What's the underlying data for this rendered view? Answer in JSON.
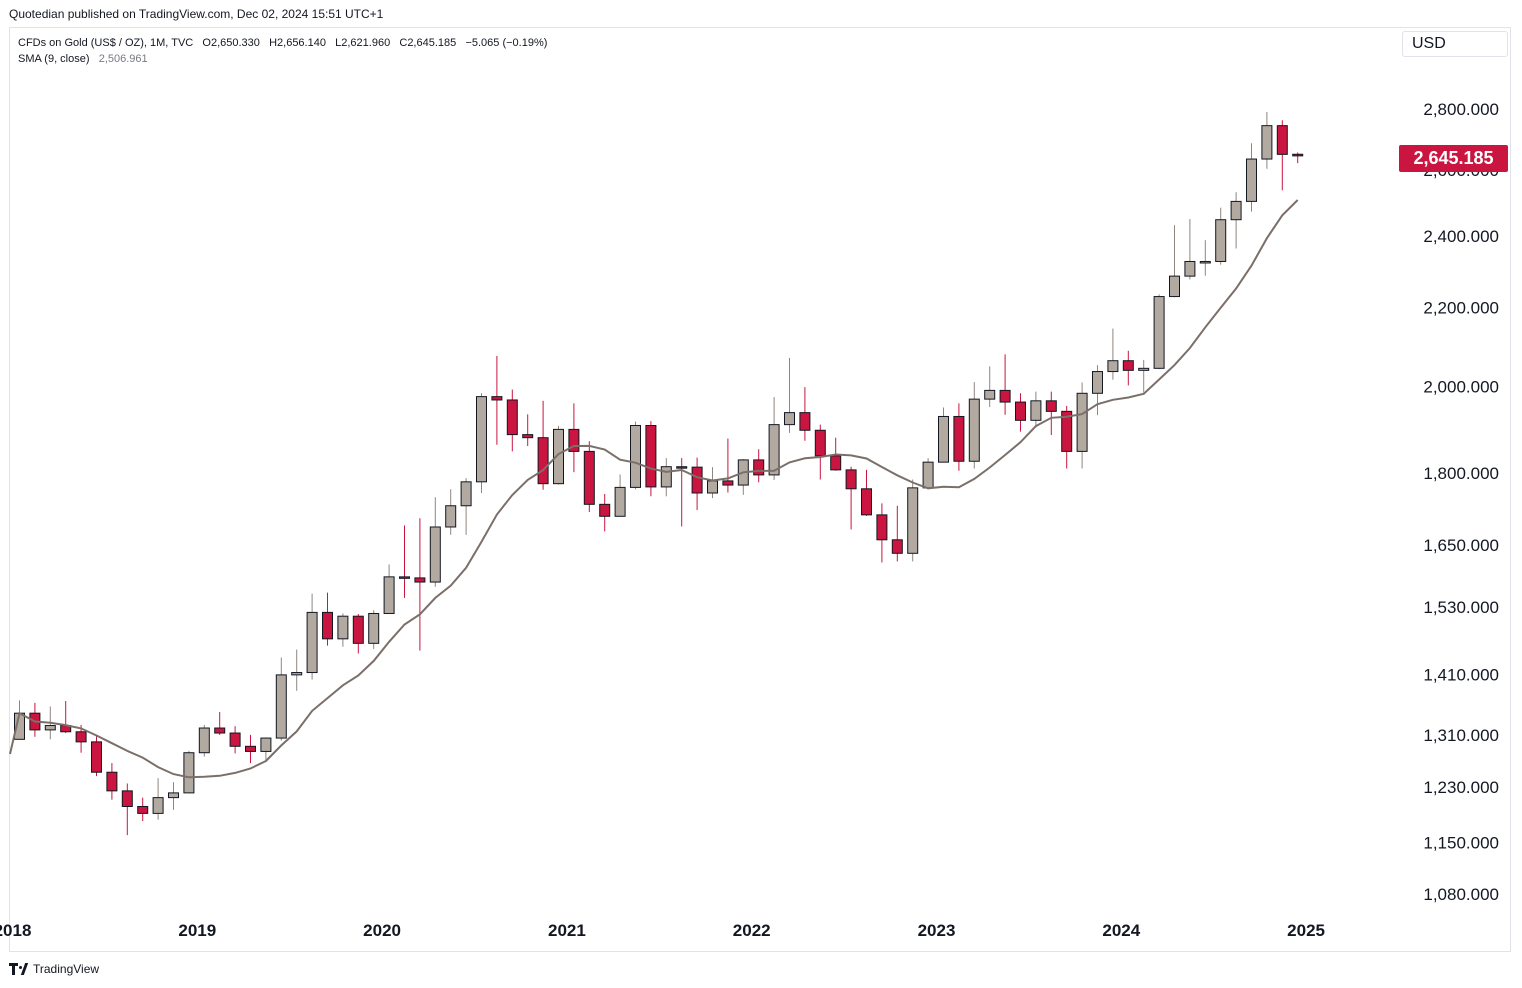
{
  "header": {
    "publisher": "Quotedian published on TradingView.com, Dec 02, 2024 15:51 UTC+1"
  },
  "legend": {
    "symbol": "CFDs on Gold (US$ / OZ), 1M, TVC",
    "open": "O2,650.330",
    "high": "H2,656.140",
    "low": "L2,621.960",
    "close": "C2,645.185",
    "change": "−5.065 (−0.19%)",
    "indicator_label": "SMA (9, close)",
    "indicator_value": "2,506.961"
  },
  "toolbar": {
    "currency": "USD"
  },
  "last_price": "2,645.185",
  "footer": {
    "brand": "TradingView"
  },
  "colors": {
    "up": "#b2a9a0",
    "down": "#c9153f",
    "sma": "#7b6f6a",
    "border": "#131722",
    "text": "#131722"
  },
  "chart_data": {
    "type": "candlestick",
    "title": "CFDs on Gold (US$ / OZ), 1M, TVC",
    "scale": "log",
    "y_ticks": [
      {
        "value": 2800,
        "label": "2,800.000"
      },
      {
        "value": 2600,
        "label": "2,600.000"
      },
      {
        "value": 2400,
        "label": "2,400.000"
      },
      {
        "value": 2200,
        "label": "2,200.000"
      },
      {
        "value": 2000,
        "label": "2,000.000"
      },
      {
        "value": 1800,
        "label": "1,800.000"
      },
      {
        "value": 1650,
        "label": "1,650.000"
      },
      {
        "value": 1530,
        "label": "1,530.000"
      },
      {
        "value": 1410,
        "label": "1,410.000"
      },
      {
        "value": 1310,
        "label": "1,310.000"
      },
      {
        "value": 1230,
        "label": "1,230.000"
      },
      {
        "value": 1150,
        "label": "1,150.000"
      },
      {
        "value": 1080,
        "label": "1,080.000"
      }
    ],
    "x_ticks": [
      {
        "index": 0,
        "label": "2018"
      },
      {
        "index": 12,
        "label": "2019"
      },
      {
        "index": 24,
        "label": "2020"
      },
      {
        "index": 36,
        "label": "2021"
      },
      {
        "index": 48,
        "label": "2022"
      },
      {
        "index": 60,
        "label": "2023"
      },
      {
        "index": 72,
        "label": "2024"
      },
      {
        "index": 84,
        "label": "2025"
      }
    ],
    "candles": [
      {
        "date": "2018-01",
        "o": 1303,
        "h": 1366,
        "l": 1303,
        "c": 1345
      },
      {
        "date": "2018-02",
        "o": 1345,
        "h": 1362,
        "l": 1307,
        "c": 1318
      },
      {
        "date": "2018-03",
        "o": 1318,
        "h": 1356,
        "l": 1303,
        "c": 1325
      },
      {
        "date": "2018-04",
        "o": 1325,
        "h": 1365,
        "l": 1313,
        "c": 1315
      },
      {
        "date": "2018-05",
        "o": 1315,
        "h": 1326,
        "l": 1282,
        "c": 1299
      },
      {
        "date": "2018-06",
        "o": 1299,
        "h": 1309,
        "l": 1246,
        "c": 1252
      },
      {
        "date": "2018-07",
        "o": 1252,
        "h": 1266,
        "l": 1211,
        "c": 1224
      },
      {
        "date": "2018-08",
        "o": 1224,
        "h": 1235,
        "l": 1160,
        "c": 1201
      },
      {
        "date": "2018-09",
        "o": 1201,
        "h": 1214,
        "l": 1180,
        "c": 1191
      },
      {
        "date": "2018-10",
        "o": 1191,
        "h": 1243,
        "l": 1182,
        "c": 1214
      },
      {
        "date": "2018-11",
        "o": 1214,
        "h": 1237,
        "l": 1196,
        "c": 1221
      },
      {
        "date": "2018-12",
        "o": 1221,
        "h": 1285,
        "l": 1221,
        "c": 1282
      },
      {
        "date": "2019-01",
        "o": 1282,
        "h": 1326,
        "l": 1276,
        "c": 1321
      },
      {
        "date": "2019-02",
        "o": 1321,
        "h": 1347,
        "l": 1310,
        "c": 1313
      },
      {
        "date": "2019-03",
        "o": 1313,
        "h": 1324,
        "l": 1281,
        "c": 1292
      },
      {
        "date": "2019-04",
        "o": 1292,
        "h": 1310,
        "l": 1266,
        "c": 1284
      },
      {
        "date": "2019-05",
        "o": 1284,
        "h": 1306,
        "l": 1268,
        "c": 1305
      },
      {
        "date": "2019-06",
        "o": 1305,
        "h": 1439,
        "l": 1301,
        "c": 1409
      },
      {
        "date": "2019-07",
        "o": 1409,
        "h": 1453,
        "l": 1382,
        "c": 1413
      },
      {
        "date": "2019-08",
        "o": 1413,
        "h": 1555,
        "l": 1401,
        "c": 1520
      },
      {
        "date": "2019-09",
        "o": 1520,
        "h": 1557,
        "l": 1460,
        "c": 1472
      },
      {
        "date": "2019-10",
        "o": 1472,
        "h": 1518,
        "l": 1458,
        "c": 1513
      },
      {
        "date": "2019-11",
        "o": 1513,
        "h": 1517,
        "l": 1446,
        "c": 1464
      },
      {
        "date": "2019-12",
        "o": 1464,
        "h": 1524,
        "l": 1454,
        "c": 1518
      },
      {
        "date": "2020-01",
        "o": 1518,
        "h": 1611,
        "l": 1517,
        "c": 1587
      },
      {
        "date": "2020-02",
        "o": 1587,
        "h": 1689,
        "l": 1547,
        "c": 1585
      },
      {
        "date": "2020-03",
        "o": 1585,
        "h": 1704,
        "l": 1451,
        "c": 1577
      },
      {
        "date": "2020-04",
        "o": 1577,
        "h": 1748,
        "l": 1568,
        "c": 1686
      },
      {
        "date": "2020-05",
        "o": 1686,
        "h": 1765,
        "l": 1670,
        "c": 1730
      },
      {
        "date": "2020-06",
        "o": 1730,
        "h": 1789,
        "l": 1670,
        "c": 1781
      },
      {
        "date": "2020-07",
        "o": 1781,
        "h": 1983,
        "l": 1757,
        "c": 1975
      },
      {
        "date": "2020-08",
        "o": 1975,
        "h": 2075,
        "l": 1863,
        "c": 1967
      },
      {
        "date": "2020-09",
        "o": 1967,
        "h": 1992,
        "l": 1848,
        "c": 1886
      },
      {
        "date": "2020-10",
        "o": 1886,
        "h": 1933,
        "l": 1860,
        "c": 1879
      },
      {
        "date": "2020-11",
        "o": 1879,
        "h": 1965,
        "l": 1764,
        "c": 1777
      },
      {
        "date": "2020-12",
        "o": 1777,
        "h": 1906,
        "l": 1775,
        "c": 1898
      },
      {
        "date": "2021-01",
        "o": 1898,
        "h": 1959,
        "l": 1802,
        "c": 1848
      },
      {
        "date": "2021-02",
        "o": 1848,
        "h": 1871,
        "l": 1717,
        "c": 1733
      },
      {
        "date": "2021-03",
        "o": 1733,
        "h": 1755,
        "l": 1677,
        "c": 1708
      },
      {
        "date": "2021-04",
        "o": 1708,
        "h": 1797,
        "l": 1708,
        "c": 1769
      },
      {
        "date": "2021-05",
        "o": 1769,
        "h": 1916,
        "l": 1765,
        "c": 1907
      },
      {
        "date": "2021-06",
        "o": 1907,
        "h": 1917,
        "l": 1750,
        "c": 1770
      },
      {
        "date": "2021-07",
        "o": 1770,
        "h": 1833,
        "l": 1750,
        "c": 1814
      },
      {
        "date": "2021-08",
        "o": 1814,
        "h": 1833,
        "l": 1687,
        "c": 1813
      },
      {
        "date": "2021-09",
        "o": 1813,
        "h": 1834,
        "l": 1721,
        "c": 1757
      },
      {
        "date": "2021-10",
        "o": 1757,
        "h": 1813,
        "l": 1746,
        "c": 1783
      },
      {
        "date": "2021-11",
        "o": 1783,
        "h": 1877,
        "l": 1758,
        "c": 1774
      },
      {
        "date": "2021-12",
        "o": 1774,
        "h": 1831,
        "l": 1753,
        "c": 1829
      },
      {
        "date": "2022-01",
        "o": 1829,
        "h": 1853,
        "l": 1780,
        "c": 1796
      },
      {
        "date": "2022-02",
        "o": 1796,
        "h": 1974,
        "l": 1785,
        "c": 1909
      },
      {
        "date": "2022-03",
        "o": 1909,
        "h": 2070,
        "l": 1890,
        "c": 1937
      },
      {
        "date": "2022-04",
        "o": 1937,
        "h": 1998,
        "l": 1872,
        "c": 1896
      },
      {
        "date": "2022-05",
        "o": 1896,
        "h": 1909,
        "l": 1786,
        "c": 1838
      },
      {
        "date": "2022-06",
        "o": 1838,
        "h": 1879,
        "l": 1805,
        "c": 1807
      },
      {
        "date": "2022-07",
        "o": 1807,
        "h": 1814,
        "l": 1681,
        "c": 1766
      },
      {
        "date": "2022-08",
        "o": 1766,
        "h": 1807,
        "l": 1709,
        "c": 1711
      },
      {
        "date": "2022-09",
        "o": 1711,
        "h": 1735,
        "l": 1615,
        "c": 1660
      },
      {
        "date": "2022-10",
        "o": 1660,
        "h": 1730,
        "l": 1617,
        "c": 1633
      },
      {
        "date": "2022-11",
        "o": 1633,
        "h": 1786,
        "l": 1617,
        "c": 1768
      },
      {
        "date": "2022-12",
        "o": 1768,
        "h": 1833,
        "l": 1765,
        "c": 1824
      },
      {
        "date": "2023-01",
        "o": 1824,
        "h": 1949,
        "l": 1824,
        "c": 1928
      },
      {
        "date": "2023-02",
        "o": 1928,
        "h": 1959,
        "l": 1805,
        "c": 1826
      },
      {
        "date": "2023-03",
        "o": 1826,
        "h": 2010,
        "l": 1810,
        "c": 1969
      },
      {
        "date": "2023-04",
        "o": 1969,
        "h": 2049,
        "l": 1950,
        "c": 1990
      },
      {
        "date": "2023-05",
        "o": 1990,
        "h": 2079,
        "l": 1932,
        "c": 1962
      },
      {
        "date": "2023-06",
        "o": 1962,
        "h": 1983,
        "l": 1893,
        "c": 1919
      },
      {
        "date": "2023-07",
        "o": 1919,
        "h": 1987,
        "l": 1903,
        "c": 1965
      },
      {
        "date": "2023-08",
        "o": 1965,
        "h": 1987,
        "l": 1885,
        "c": 1940
      },
      {
        "date": "2023-09",
        "o": 1940,
        "h": 1953,
        "l": 1810,
        "c": 1848
      },
      {
        "date": "2023-10",
        "o": 1848,
        "h": 2009,
        "l": 1810,
        "c": 1983
      },
      {
        "date": "2023-11",
        "o": 1983,
        "h": 2052,
        "l": 1931,
        "c": 2036
      },
      {
        "date": "2023-12",
        "o": 2036,
        "h": 2145,
        "l": 2016,
        "c": 2063
      },
      {
        "date": "2024-01",
        "o": 2063,
        "h": 2088,
        "l": 2002,
        "c": 2039
      },
      {
        "date": "2024-02",
        "o": 2039,
        "h": 2065,
        "l": 1985,
        "c": 2044
      },
      {
        "date": "2024-03",
        "o": 2044,
        "h": 2236,
        "l": 2042,
        "c": 2230
      },
      {
        "date": "2024-04",
        "o": 2230,
        "h": 2432,
        "l": 2228,
        "c": 2286
      },
      {
        "date": "2024-05",
        "o": 2286,
        "h": 2450,
        "l": 2277,
        "c": 2327
      },
      {
        "date": "2024-06",
        "o": 2327,
        "h": 2388,
        "l": 2287,
        "c": 2327
      },
      {
        "date": "2024-07",
        "o": 2327,
        "h": 2484,
        "l": 2318,
        "c": 2448
      },
      {
        "date": "2024-08",
        "o": 2448,
        "h": 2531,
        "l": 2364,
        "c": 2503
      },
      {
        "date": "2024-09",
        "o": 2503,
        "h": 2686,
        "l": 2472,
        "c": 2635
      },
      {
        "date": "2024-10",
        "o": 2635,
        "h": 2790,
        "l": 2604,
        "c": 2744
      },
      {
        "date": "2024-11",
        "o": 2744,
        "h": 2762,
        "l": 2537,
        "c": 2650
      },
      {
        "date": "2024-12",
        "o": 2650.33,
        "h": 2656.14,
        "l": 2621.96,
        "c": 2645.185
      }
    ]
  }
}
